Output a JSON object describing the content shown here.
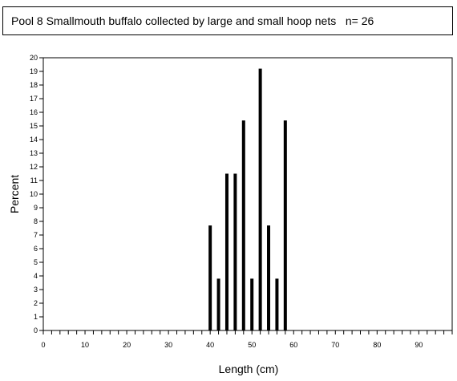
{
  "header": {
    "title": "Pool 8 Smallmouth buffalo collected by large and small hoop nets",
    "n_label": "n= 26"
  },
  "chart_data": {
    "type": "bar",
    "title": "Pool 8 Smallmouth buffalo collected by large and small hoop nets   n= 26",
    "xlabel": "Length (cm)",
    "ylabel": "Percent",
    "xlim": [
      0,
      98
    ],
    "ylim": [
      0,
      20
    ],
    "x_ticks": [
      0,
      10,
      20,
      30,
      40,
      50,
      60,
      70,
      80,
      90
    ],
    "y_ticks": [
      0,
      1,
      2,
      3,
      4,
      5,
      6,
      7,
      8,
      9,
      10,
      11,
      12,
      13,
      14,
      15,
      16,
      17,
      18,
      19,
      20
    ],
    "x": [
      40,
      42,
      44,
      46,
      48,
      50,
      52,
      54,
      56,
      58
    ],
    "values": [
      7.7,
      3.8,
      11.5,
      11.5,
      15.4,
      3.8,
      19.2,
      7.7,
      3.8,
      15.4
    ]
  }
}
